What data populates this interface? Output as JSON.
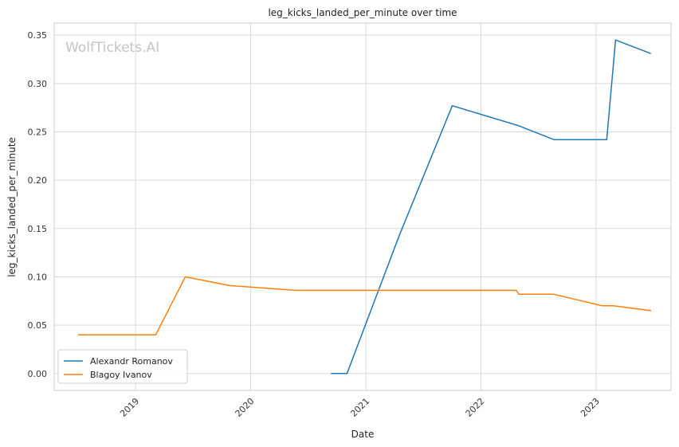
{
  "chart_data": {
    "type": "line",
    "title": "leg_kicks_landed_per_minute over time",
    "xlabel": "Date",
    "ylabel": "leg_kicks_landed_per_minute",
    "watermark": "WolfTickets.AI",
    "x_ticks": [
      "2019",
      "2020",
      "2021",
      "2022",
      "2023"
    ],
    "y_ticks": [
      "0.00",
      "0.05",
      "0.10",
      "0.15",
      "0.20",
      "0.25",
      "0.30",
      "0.35"
    ],
    "xlim": [
      "2018-04-18",
      "2023-08-27"
    ],
    "ylim": [
      -0.0175,
      0.3625
    ],
    "grid": true,
    "legend_position": "lower-left",
    "series": [
      {
        "name": "Alexandr Romanov",
        "color": "#1f77b4",
        "points": [
          [
            "2020-09-12",
            0.0
          ],
          [
            "2020-11-02",
            0.0
          ],
          [
            "2021-04-17",
            0.143
          ],
          [
            "2021-10-02",
            0.277
          ],
          [
            "2022-04-24",
            0.257
          ],
          [
            "2022-05-03",
            0.256
          ],
          [
            "2022-08-20",
            0.242
          ],
          [
            "2023-02-04",
            0.242
          ],
          [
            "2023-03-04",
            0.345
          ],
          [
            "2023-06-24",
            0.331
          ]
        ]
      },
      {
        "name": "Blagoy Ivanov",
        "color": "#ff7f0e",
        "points": [
          [
            "2018-07-03",
            0.04
          ],
          [
            "2019-03-06",
            0.04
          ],
          [
            "2019-06-08",
            0.1
          ],
          [
            "2019-10-27",
            0.091
          ],
          [
            "2020-05-23",
            0.086
          ],
          [
            "2022-04-23",
            0.086
          ],
          [
            "2022-05-01",
            0.082
          ],
          [
            "2022-08-20",
            0.082
          ],
          [
            "2023-01-21",
            0.07
          ],
          [
            "2023-02-25",
            0.07
          ],
          [
            "2023-06-25",
            0.065
          ]
        ]
      }
    ]
  }
}
